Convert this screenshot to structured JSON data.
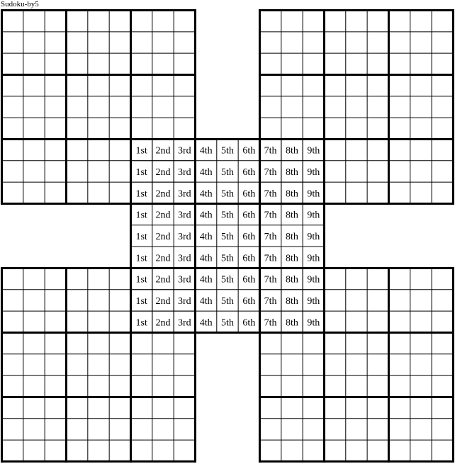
{
  "title": "Sudoku-by5",
  "puzzle": {
    "grid_size": 9,
    "grid_count": 5,
    "grids": [
      "top-left",
      "top-right",
      "center",
      "bottom-left",
      "bottom-right"
    ],
    "center_cell_labels": [
      "1st",
      "2nd",
      "3rd",
      "4th",
      "5th",
      "6th",
      "7th",
      "8th",
      "9th"
    ],
    "line_color": "#000000"
  }
}
